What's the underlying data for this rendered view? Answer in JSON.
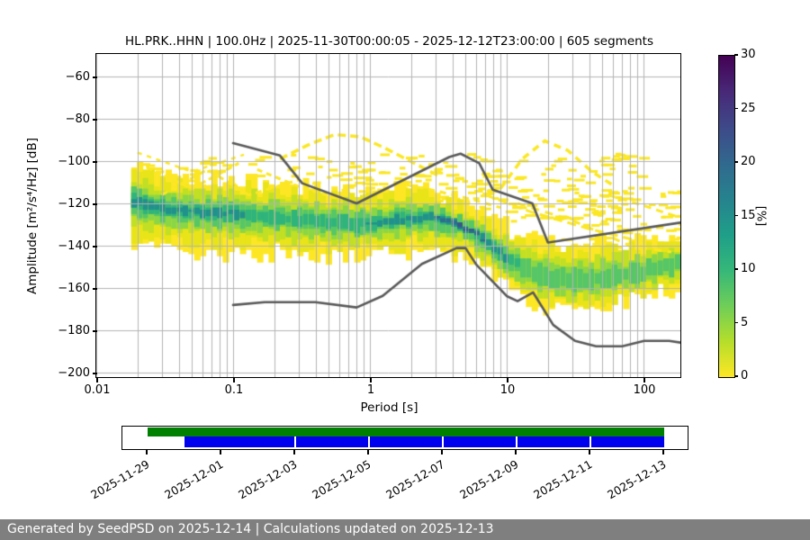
{
  "footer": {
    "text": "Generated by SeedPSD on 2025-12-14 | Calculations updated on 2025-12-13"
  },
  "colors": {
    "grid": "#b3b3b3",
    "frame": "#000000",
    "noise_model": "#595959",
    "footer_bg": "#7f7f7f",
    "footer_text": "#ffffff",
    "timeline_green": "#008000",
    "timeline_blue": "#0000ee",
    "filament_yellow": "#fbe723"
  },
  "chart_data": {
    "type": "heatmap",
    "title": "HL.PRK..HHN | 100.0Hz | 2025-11-30T00:00:05 - 2025-12-12T23:00:00 | 605 segments",
    "xlabel": "Period [s]",
    "ylabel": "Amplitude [m²/s⁴/Hz] [dB]",
    "xlim": [
      0.01,
      186
    ],
    "ylim": [
      -202.1,
      -49.4
    ],
    "x_ticks": [
      0.01,
      0.1,
      1,
      10,
      100
    ],
    "x_tick_labels": [
      "0.01",
      "0.1",
      "1",
      "10",
      "100"
    ],
    "y_ticks": [
      -60,
      -80,
      -100,
      -120,
      -140,
      -160,
      -180,
      -200
    ],
    "grid": true,
    "colorbar": {
      "label": "[%]",
      "ticks": [
        0,
        5,
        10,
        15,
        20,
        25,
        30
      ],
      "range": [
        0,
        30
      ],
      "colors_bottom_to_top": [
        "#fde725",
        "#b5de2b",
        "#6ece58",
        "#35b779",
        "#1f9e89",
        "#26828e",
        "#31688e",
        "#3e4989",
        "#482878",
        "#440154"
      ]
    },
    "psd_band": {
      "comment": "columns: period[s], mode dB, spread up dB, spread down dB, peak probability %",
      "points": [
        [
          0.018,
          -118,
          17,
          22,
          16
        ],
        [
          0.03,
          -122,
          16,
          20,
          14
        ],
        [
          0.06,
          -124,
          15,
          19,
          13
        ],
        [
          0.12,
          -125,
          16,
          18,
          13
        ],
        [
          0.25,
          -127,
          15,
          17,
          12
        ],
        [
          0.5,
          -129,
          16,
          15,
          12
        ],
        [
          0.9,
          -130,
          17,
          15,
          13
        ],
        [
          1.6,
          -128,
          15,
          15,
          14
        ],
        [
          2.6,
          -126,
          13,
          16,
          17
        ],
        [
          4.0,
          -129,
          12,
          15,
          21
        ],
        [
          5.2,
          -132,
          11,
          14,
          24
        ],
        [
          6.5,
          -136,
          12,
          14,
          20
        ],
        [
          8.0,
          -141,
          13,
          14,
          15
        ],
        [
          10,
          -146,
          15,
          13,
          13
        ],
        [
          13,
          -151,
          16,
          12,
          12
        ],
        [
          18,
          -155,
          18,
          13,
          11
        ],
        [
          25,
          -157,
          18,
          13,
          11
        ],
        [
          40,
          -157,
          17,
          13,
          11
        ],
        [
          60,
          -155,
          16,
          12,
          11
        ],
        [
          100,
          -152,
          15,
          12,
          11
        ],
        [
          186,
          -149,
          14,
          12,
          11
        ]
      ]
    },
    "noise_models": {
      "nhnm": [
        [
          0.1,
          -91.5
        ],
        [
          0.22,
          -97.4
        ],
        [
          0.32,
          -110.5
        ],
        [
          0.8,
          -120.0
        ],
        [
          3.8,
          -98.1
        ],
        [
          4.6,
          -96.5
        ],
        [
          6.3,
          -101.0
        ],
        [
          7.9,
          -113.5
        ],
        [
          15.4,
          -120.0
        ],
        [
          20,
          -138.5
        ],
        [
          186,
          -129.1
        ]
      ],
      "nlnm": [
        [
          0.1,
          -168.0
        ],
        [
          0.17,
          -166.7
        ],
        [
          0.4,
          -166.7
        ],
        [
          0.8,
          -169.2
        ],
        [
          1.24,
          -163.7
        ],
        [
          2.4,
          -148.6
        ],
        [
          4.3,
          -141.1
        ],
        [
          5,
          -141.1
        ],
        [
          6,
          -149.0
        ],
        [
          10,
          -163.8
        ],
        [
          12,
          -166.2
        ],
        [
          15.6,
          -162.1
        ],
        [
          21.9,
          -177.5
        ],
        [
          31.6,
          -185.0
        ],
        [
          45,
          -187.5
        ],
        [
          70,
          -187.5
        ],
        [
          101,
          -185.0
        ],
        [
          154,
          -185.0
        ],
        [
          186,
          -185.8
        ]
      ]
    },
    "filaments": [
      {
        "points": [
          [
            0.22,
            -99
          ],
          [
            0.35,
            -92.5
          ],
          [
            0.55,
            -87.5
          ],
          [
            0.85,
            -88.5
          ],
          [
            1.3,
            -94
          ],
          [
            2.1,
            -101
          ],
          [
            3.3,
            -107.5
          ]
        ],
        "dash": [
          9,
          5
        ],
        "width": 3.5
      },
      {
        "points": [
          [
            9,
            -113
          ],
          [
            13,
            -99
          ],
          [
            19,
            -90.5
          ],
          [
            28,
            -95
          ],
          [
            42,
            -105
          ],
          [
            60,
            -111.5
          ]
        ],
        "dash": [
          8,
          6
        ],
        "width": 3.5
      },
      {
        "points": [
          [
            0.02,
            -101
          ],
          [
            0.05,
            -113
          ],
          [
            0.11,
            -101
          ]
        ],
        "dash": [
          7,
          4
        ],
        "width": 3
      },
      {
        "points": [
          [
            0.03,
            -116
          ],
          [
            0.065,
            -104
          ],
          [
            0.13,
            -116
          ],
          [
            0.3,
            -109
          ]
        ],
        "dash": [
          7,
          5
        ],
        "width": 3
      },
      {
        "points": [
          [
            0.15,
            -104
          ],
          [
            0.3,
            -112
          ],
          [
            0.6,
            -118
          ]
        ],
        "dash": [
          6,
          5
        ],
        "width": 3
      },
      {
        "points": [
          [
            7,
            -116
          ],
          [
            15,
            -124
          ],
          [
            40,
            -132
          ],
          [
            110,
            -139
          ]
        ],
        "dash": [
          10,
          6
        ],
        "width": 3
      },
      {
        "points": [
          [
            12,
            -120
          ],
          [
            30,
            -128
          ],
          [
            80,
            -140
          ],
          [
            160,
            -143
          ]
        ],
        "dash": [
          9,
          7
        ],
        "width": 3
      },
      {
        "points": [
          [
            55,
            -116
          ],
          [
            100,
            -121
          ],
          [
            170,
            -126
          ]
        ],
        "dash": [
          8,
          6
        ],
        "width": 3
      },
      {
        "points": [
          [
            1.5,
            -110
          ],
          [
            3,
            -114
          ],
          [
            5.5,
            -118
          ],
          [
            9,
            -122
          ]
        ],
        "dash": [
          7,
          6
        ],
        "width": 3
      },
      {
        "points": [
          [
            0.02,
            -96
          ],
          [
            0.05,
            -105
          ],
          [
            0.12,
            -97
          ]
        ],
        "dash": [
          5,
          6
        ],
        "width": 2.5
      }
    ],
    "scatter_regions": [
      {
        "p": [
          0.15,
          4
        ],
        "db": [
          -96,
          -122
        ],
        "n": 80
      },
      {
        "p": [
          5,
          100
        ],
        "db": [
          -96,
          -128
        ],
        "n": 110
      },
      {
        "p": [
          25,
          186
        ],
        "db": [
          -112,
          -142
        ],
        "n": 70
      },
      {
        "p": [
          0.018,
          0.15
        ],
        "db": [
          -98,
          -116
        ],
        "n": 45
      },
      {
        "p": [
          0.5,
          8
        ],
        "db": [
          -104,
          -122
        ],
        "n": 50
      }
    ],
    "render": {
      "bins": 96,
      "seed": 7,
      "zones": [
        {
          "f": 1.0,
          "color": "#fde725",
          "min": 0,
          "j": 5
        },
        {
          "f": 0.8,
          "color": "#e8e419",
          "min": 0,
          "j": 4
        },
        {
          "f": 0.58,
          "color": "#c0df25",
          "min": 0,
          "j": 3
        },
        {
          "f": 0.42,
          "color": "#8bd646",
          "min": 0,
          "j": 2.5
        },
        {
          "f": 0.28,
          "color": "#56c667",
          "min": 0,
          "j": 2
        },
        {
          "f": 0.17,
          "color": "#2fb47c",
          "min": 12,
          "j": 1.5
        },
        {
          "f": 0.1,
          "color": "#21918c",
          "min": 13,
          "j": 1.2
        },
        {
          "f": 0.06,
          "color": "#2c6e8e",
          "min": 18,
          "j": 1
        },
        {
          "f": 0.04,
          "color": "#38568b",
          "min": 22,
          "j": 1
        }
      ]
    }
  },
  "timeline": {
    "axis_range": [
      "2025-11-28T07:30:00Z",
      "2025-12-13T15:15:00Z"
    ],
    "availability_span": [
      "2025-11-29T00:00:00Z",
      "2025-12-13T00:00:00Z"
    ],
    "coverage_span": [
      "2025-11-30T00:00:00Z",
      "2025-12-13T00:00:00Z"
    ],
    "separators": [
      "2025-12-03T00:00:00Z",
      "2025-12-05T00:00:00Z",
      "2025-12-07T00:00:00Z",
      "2025-12-09T00:00:00Z",
      "2025-12-11T00:00:00Z"
    ],
    "ticks": [
      {
        "date": "2025-11-29T00:00:00Z",
        "label": "2025-11-29"
      },
      {
        "date": "2025-12-01T00:00:00Z",
        "label": "2025-12-01"
      },
      {
        "date": "2025-12-03T00:00:00Z",
        "label": "2025-12-03"
      },
      {
        "date": "2025-12-05T00:00:00Z",
        "label": "2025-12-05"
      },
      {
        "date": "2025-12-07T00:00:00Z",
        "label": "2025-12-07"
      },
      {
        "date": "2025-12-09T00:00:00Z",
        "label": "2025-12-09"
      },
      {
        "date": "2025-12-11T00:00:00Z",
        "label": "2025-12-11"
      },
      {
        "date": "2025-12-13T00:00:00Z",
        "label": "2025-12-13"
      }
    ]
  }
}
